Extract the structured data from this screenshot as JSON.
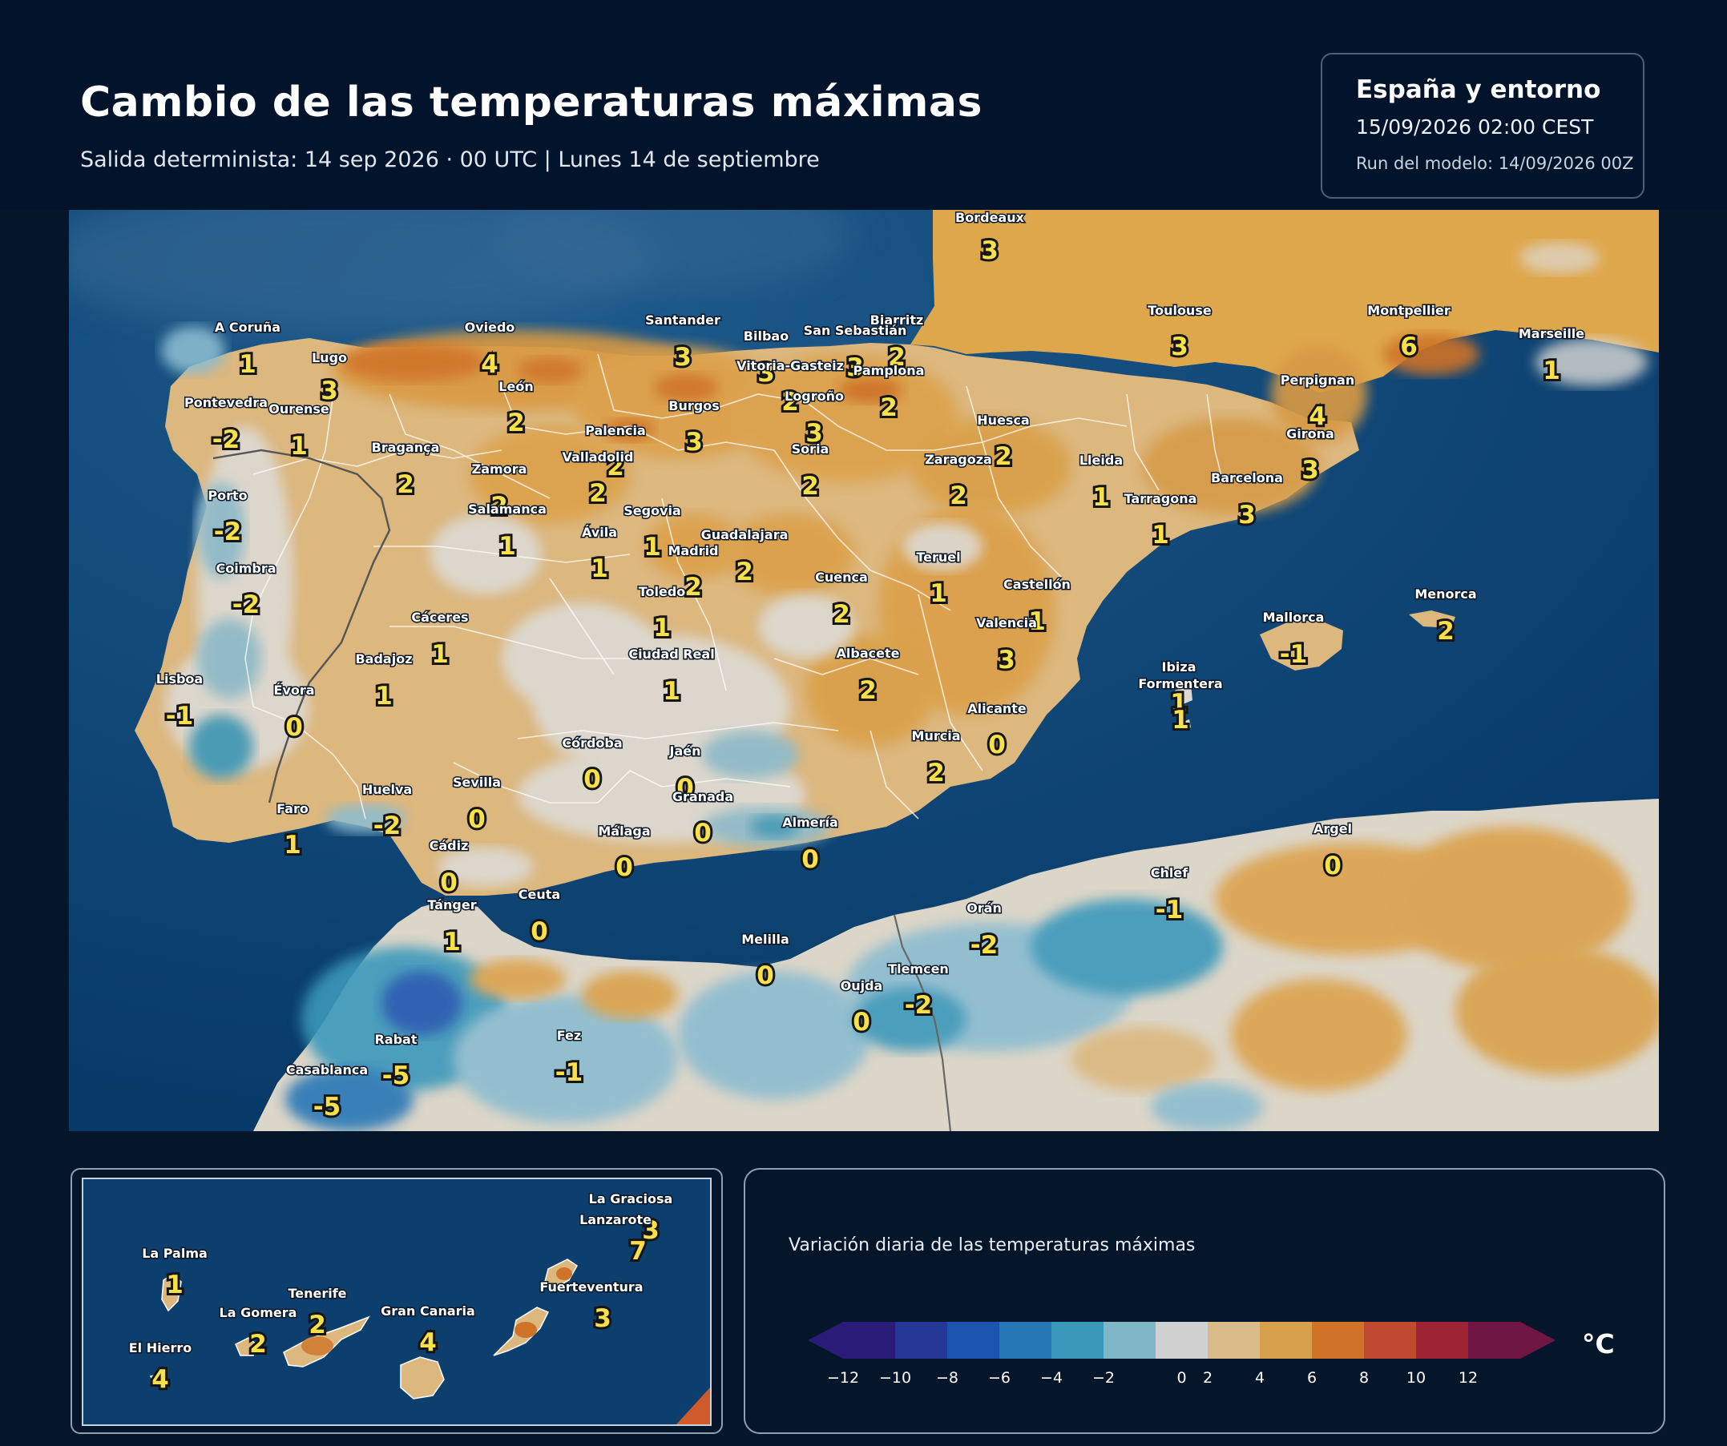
{
  "header": {
    "title": "Cambio de las temperaturas máximas",
    "subtitle": "Salida determinista: 14 sep 2026 · 00 UTC  |  Lunes 14 de septiembre"
  },
  "info": {
    "region": "España y entorno",
    "valid": "15/09/2026  02:00 CEST",
    "run": "Run del modelo: 14/09/2026 00Z"
  },
  "cities": [
    {
      "name": "Bordeaux",
      "value": "3"
    },
    {
      "name": "A Coruña",
      "value": "1"
    },
    {
      "name": "Lugo",
      "value": "3"
    },
    {
      "name": "Oviedo",
      "value": "4"
    },
    {
      "name": "Santander",
      "value": "3"
    },
    {
      "name": "Bilbao",
      "value": "3"
    },
    {
      "name": "Biarritz",
      "value": "2"
    },
    {
      "name": "San Sebastián",
      "value": "3"
    },
    {
      "name": "Vitoria-Gasteiz",
      "value": "2"
    },
    {
      "name": "Pamplona",
      "value": "2"
    },
    {
      "name": "Logroño",
      "value": "3"
    },
    {
      "name": "Toulouse",
      "value": "3"
    },
    {
      "name": "Montpellier",
      "value": "6"
    },
    {
      "name": "Marseille",
      "value": "1"
    },
    {
      "name": "Pontevedra",
      "value": "-2"
    },
    {
      "name": "Ourense",
      "value": "1"
    },
    {
      "name": "León",
      "value": "2"
    },
    {
      "name": "Burgos",
      "value": "3"
    },
    {
      "name": "Palencia",
      "value": "2"
    },
    {
      "name": "Valladolid",
      "value": "2"
    },
    {
      "name": "Perpignan",
      "value": "4"
    },
    {
      "name": "Huesca",
      "value": "2"
    },
    {
      "name": "Bragança",
      "value": "2"
    },
    {
      "name": "Zamora",
      "value": "2"
    },
    {
      "name": "Soria",
      "value": "2"
    },
    {
      "name": "Zaragoza",
      "value": "2"
    },
    {
      "name": "Lleida",
      "value": "1"
    },
    {
      "name": "Girona",
      "value": "3"
    },
    {
      "name": "Porto",
      "value": "-2"
    },
    {
      "name": "Salamanca",
      "value": "1"
    },
    {
      "name": "Segovia",
      "value": "1"
    },
    {
      "name": "Tarragona",
      "value": "1"
    },
    {
      "name": "Barcelona",
      "value": "3"
    },
    {
      "name": "Ávila",
      "value": "1"
    },
    {
      "name": "Guadalajara",
      "value": "2"
    },
    {
      "name": "Madrid",
      "value": "2"
    },
    {
      "name": "Coimbra",
      "value": "-2"
    },
    {
      "name": "Teruel",
      "value": "1"
    },
    {
      "name": "Cuenca",
      "value": "2"
    },
    {
      "name": "Toledo",
      "value": "1"
    },
    {
      "name": "Castellón",
      "value": "1"
    },
    {
      "name": "Menorca",
      "value": "2"
    },
    {
      "name": "Cáceres",
      "value": "1"
    },
    {
      "name": "Valencia",
      "value": "3"
    },
    {
      "name": "Mallorca",
      "value": "-1"
    },
    {
      "name": "Badajoz",
      "value": "1"
    },
    {
      "name": "Ciudad Real",
      "value": "1"
    },
    {
      "name": "Albacete",
      "value": "2"
    },
    {
      "name": "Ibiza",
      "value": "1"
    },
    {
      "name": "Formentera",
      "value": "1"
    },
    {
      "name": "Lisboa",
      "value": "-1"
    },
    {
      "name": "Évora",
      "value": "0"
    },
    {
      "name": "Alicante",
      "value": "0"
    },
    {
      "name": "Córdoba",
      "value": "0"
    },
    {
      "name": "Jaén",
      "value": "0"
    },
    {
      "name": "Murcia",
      "value": "2"
    },
    {
      "name": "Huelva",
      "value": "-2"
    },
    {
      "name": "Sevilla",
      "value": "0"
    },
    {
      "name": "Granada",
      "value": "0"
    },
    {
      "name": "Faro",
      "value": "1"
    },
    {
      "name": "Almería",
      "value": "0"
    },
    {
      "name": "Málaga",
      "value": "0"
    },
    {
      "name": "Cádiz",
      "value": "0"
    },
    {
      "name": "Argel",
      "value": "0"
    },
    {
      "name": "Chlef",
      "value": "-1"
    },
    {
      "name": "Tánger",
      "value": "1"
    },
    {
      "name": "Ceuta",
      "value": "0"
    },
    {
      "name": "Orán",
      "value": "-2"
    },
    {
      "name": "Melilla",
      "value": "0"
    },
    {
      "name": "Tlemcen",
      "value": "-2"
    },
    {
      "name": "Oujda",
      "value": "0"
    },
    {
      "name": "Rabat",
      "value": "-5"
    },
    {
      "name": "Fez",
      "value": "-1"
    },
    {
      "name": "Casablanca",
      "value": "-5"
    }
  ],
  "canarias": [
    {
      "name": "La Graciosa",
      "value": "3"
    },
    {
      "name": "Lanzarote",
      "value": "7"
    },
    {
      "name": "La Palma",
      "value": "1"
    },
    {
      "name": "Tenerife",
      "value": "2"
    },
    {
      "name": "Fuerteventura",
      "value": "3"
    },
    {
      "name": "La Gomera",
      "value": "2"
    },
    {
      "name": "Gran Canaria",
      "value": "4"
    },
    {
      "name": "El Hierro",
      "value": "4"
    }
  ],
  "legend": {
    "title": "Variación diaria de las temperaturas máximas",
    "unit": "°C",
    "ticks": [
      "−12",
      "−10",
      "−8",
      "−6",
      "−4",
      "−2",
      "0",
      "2",
      "4",
      "6",
      "8",
      "10",
      "12"
    ],
    "colors": [
      "#2b1b78",
      "#243797",
      "#1b55b0",
      "#2577b6",
      "#3a98bb",
      "#7fb6c8",
      "#cfd0cf",
      "#d9bb8a",
      "#d7a04c",
      "#cf7328",
      "#bf4a30",
      "#9d2335",
      "#6f1742"
    ]
  }
}
